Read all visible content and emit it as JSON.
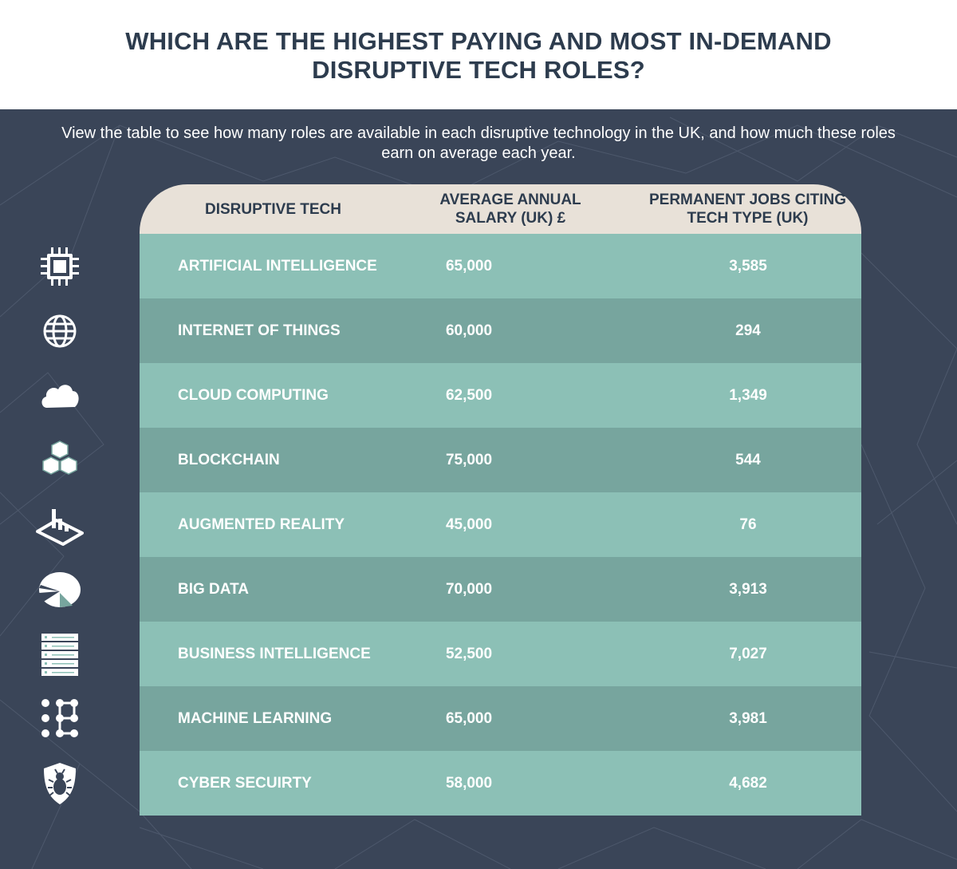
{
  "title": "WHICH ARE THE HIGHEST PAYING AND MOST IN-DEMAND DISRUPTIVE TECH ROLES?",
  "intro": "View the table to see how many roles are available in each disruptive technology in the UK, and how much these roles earn on average each year.",
  "colors": {
    "title": "#2d3c4e",
    "background": "#3a4558",
    "header": "#e8e1d8",
    "row_light": "#8cc0b6",
    "row_dark": "#77a59e",
    "text": "#ffffff"
  },
  "table": {
    "headers": {
      "tech": "DISRUPTIVE TECH",
      "salary": "AVERAGE ANNUAL SALARY (UK) £",
      "jobs": "PERMANENT JOBS CITING TECH TYPE (UK)"
    },
    "rows": [
      {
        "icon": "cpu-chip-icon",
        "name": "ARTIFICIAL INTELLIGENCE",
        "salary": "65,000",
        "jobs": "3,585"
      },
      {
        "icon": "globe-icon",
        "name": "INTERNET OF THINGS",
        "salary": "60,000",
        "jobs": "294"
      },
      {
        "icon": "cloud-icon",
        "name": "CLOUD COMPUTING",
        "salary": "62,500",
        "jobs": "1,349"
      },
      {
        "icon": "stacked-cubes-icon",
        "name": "BLOCKCHAIN",
        "salary": "75,000",
        "jobs": "544"
      },
      {
        "icon": "ar-device-icon",
        "name": "AUGMENTED REALITY",
        "salary": "45,000",
        "jobs": "76"
      },
      {
        "icon": "pie-chart-icon",
        "name": "BIG DATA",
        "salary": "70,000",
        "jobs": "3,913"
      },
      {
        "icon": "server-rack-icon",
        "name": "BUSINESS INTELLIGENCE",
        "salary": "52,500",
        "jobs": "7,027"
      },
      {
        "icon": "neural-network-icon",
        "name": "MACHINE LEARNING",
        "salary": "65,000",
        "jobs": "3,981"
      },
      {
        "icon": "shield-bug-icon",
        "name": "CYBER SECUIRTY",
        "salary": "58,000",
        "jobs": "4,682"
      }
    ]
  }
}
